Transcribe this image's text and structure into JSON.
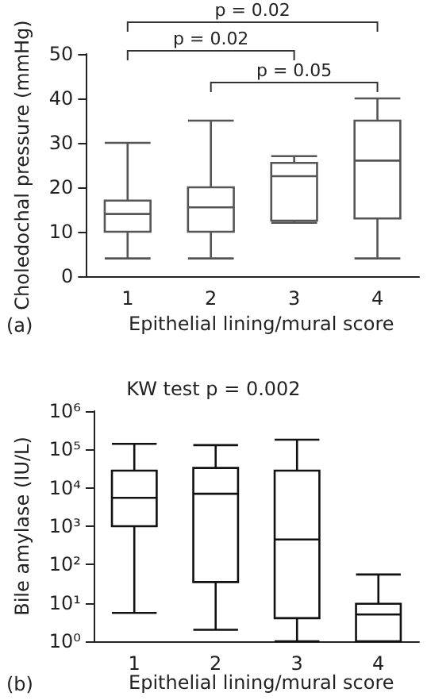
{
  "chart_data": [
    {
      "type": "box",
      "xlabel": "Epithelial lining/mural score",
      "ylabel": "Choledochal pressure (mmHg)",
      "categories": [
        "1",
        "2",
        "3",
        "4"
      ],
      "ylim": [
        0,
        50
      ],
      "yticks": [
        0,
        10,
        20,
        30,
        40,
        50
      ],
      "annotations": [
        "p = 0.02",
        "p = 0.02",
        "p = 0.05",
        "(a)"
      ],
      "series": [
        {
          "color": "#555555",
          "boxes": [
            {
              "low": 4,
              "q1": 10,
              "median": 14,
              "q3": 17,
              "high": 30
            },
            {
              "low": 4,
              "q1": 10,
              "median": 15.5,
              "q3": 20,
              "high": 35
            },
            {
              "low": 12,
              "q1": 12.5,
              "median": 22.5,
              "q3": 25.5,
              "high": 27
            },
            {
              "low": 4,
              "q1": 13,
              "median": 26,
              "q3": 35,
              "high": 40
            }
          ]
        }
      ]
    },
    {
      "type": "box",
      "title": "KW test p = 0.002",
      "xlabel": "Epithelial lining/mural score",
      "ylabel": "Bile amylase (IU/L)",
      "categories": [
        "1",
        "2",
        "3",
        "4"
      ],
      "log": true,
      "ylim": [
        1,
        1000000
      ],
      "yticks": [
        {
          "value": 1,
          "label": "10⁰"
        },
        {
          "value": 10,
          "label": "10¹"
        },
        {
          "value": 100,
          "label": "10²"
        },
        {
          "value": 1000,
          "label": "10³"
        },
        {
          "value": 10000,
          "label": "10⁴"
        },
        {
          "value": 100000,
          "label": "10⁵"
        },
        {
          "value": 1000000,
          "label": "10⁶"
        }
      ],
      "annotations": [
        "(b)"
      ],
      "series": [
        {
          "color": "#111111",
          "boxes": [
            {
              "low": 5.5,
              "q1": 1000,
              "median": 5500,
              "q3": 28000,
              "high": 140000
            },
            {
              "low": 2,
              "q1": 35,
              "median": 7000,
              "q3": 33000,
              "high": 130000
            },
            {
              "low": 1,
              "q1": 4,
              "median": 450,
              "q3": 28000,
              "high": 180000
            },
            {
              "low": 1,
              "q1": 1,
              "median": 5,
              "q3": 9.5,
              "high": 55
            }
          ]
        }
      ]
    }
  ]
}
